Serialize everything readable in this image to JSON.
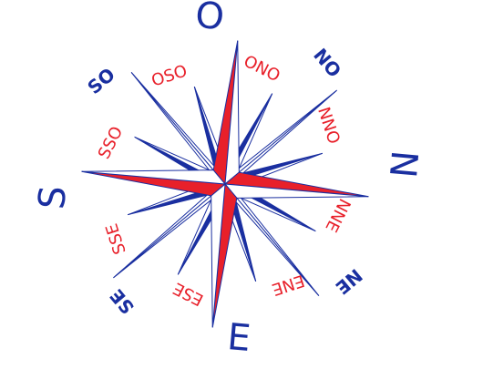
{
  "compass": {
    "main": [
      "O",
      "N",
      "E",
      "S"
    ],
    "intercardinal": [
      "NO",
      "NE",
      "SE",
      "SO"
    ],
    "minor": [
      "ONO",
      "NNO",
      "NNE",
      "ENE",
      "ESE",
      "SSE",
      "SSO",
      "OSO"
    ]
  }
}
